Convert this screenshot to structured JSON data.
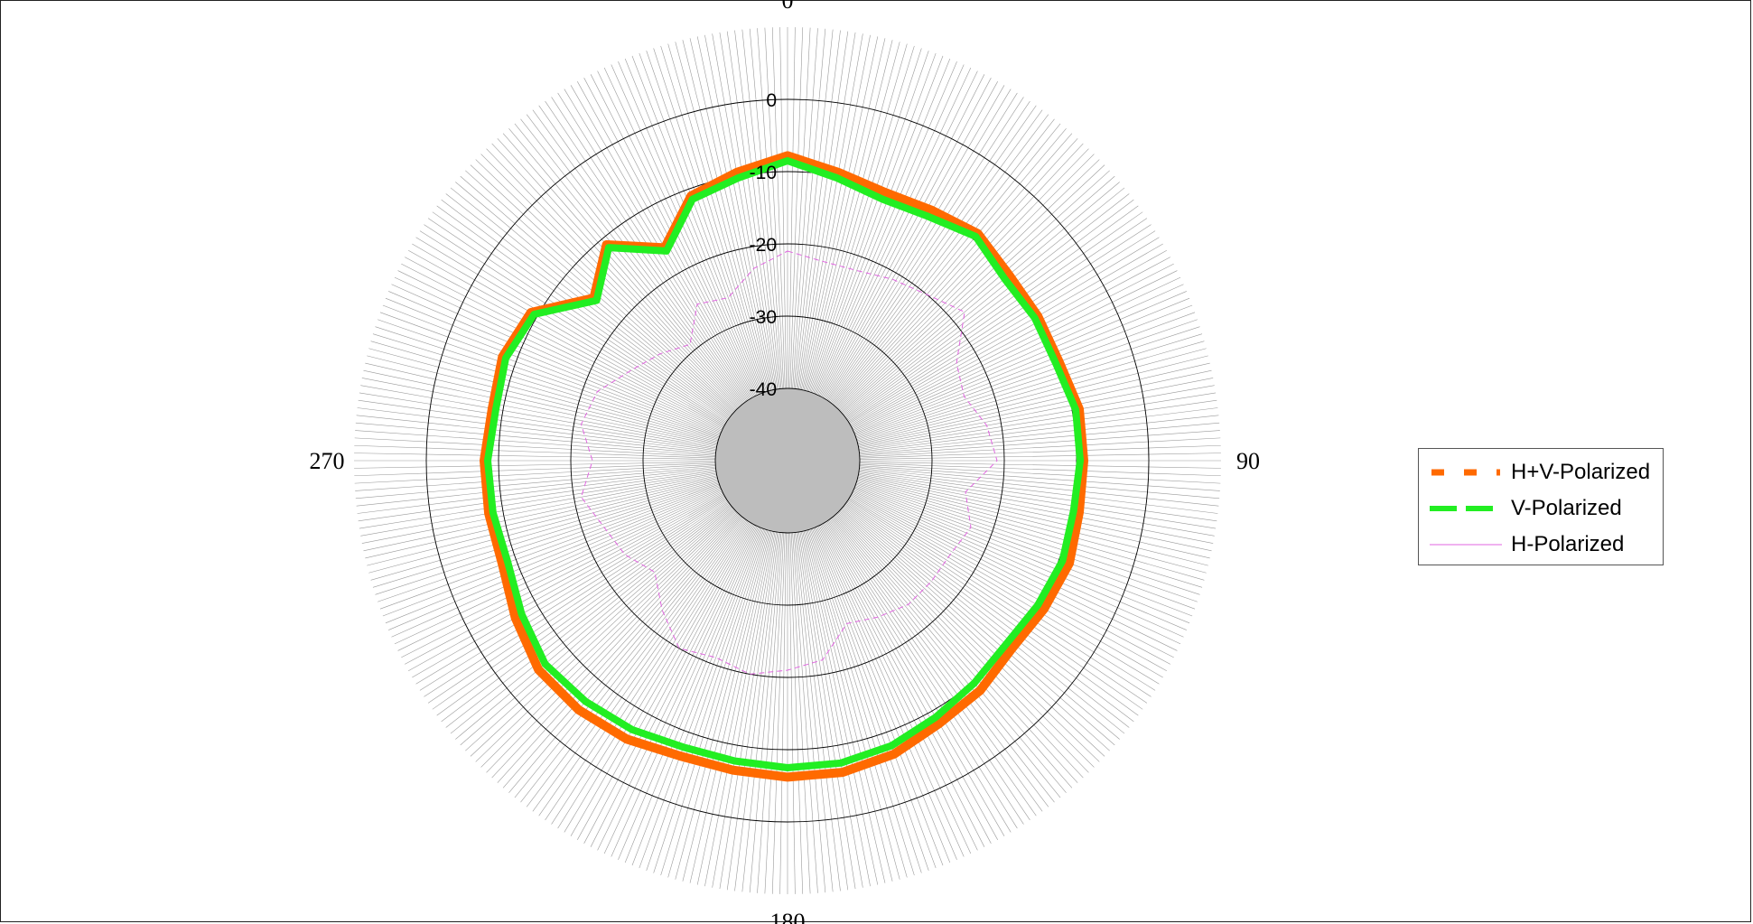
{
  "chart_data": {
    "type": "line",
    "subtype": "polar",
    "title": "",
    "angle_labels": [
      {
        "angle": 0,
        "text": "0"
      },
      {
        "angle": 90,
        "text": "90"
      },
      {
        "angle": 180,
        "text": "180"
      },
      {
        "angle": 270,
        "text": "270"
      }
    ],
    "radial_axis": {
      "min": -50,
      "max": 10,
      "rings": [
        0,
        -10,
        -20,
        -30,
        -40
      ],
      "ring_labels": [
        "0",
        "-10",
        "-20",
        "-30",
        "-40"
      ]
    },
    "angle_direction": "clockwise",
    "zero_angle": "top",
    "grid": true,
    "legend_position": "right",
    "series": [
      {
        "name": "H+V-Polarized",
        "color": "#ff6a00",
        "dash": "dashed",
        "points": [
          [
            0,
            -7.8
          ],
          [
            10,
            -9.5
          ],
          [
            20,
            -10.5
          ],
          [
            30,
            -10
          ],
          [
            40,
            -9
          ],
          [
            50,
            -10
          ],
          [
            60,
            -10
          ],
          [
            70,
            -10
          ],
          [
            80,
            -9
          ],
          [
            90,
            -9
          ],
          [
            100,
            -9
          ],
          [
            110,
            -8.5
          ],
          [
            120,
            -9
          ],
          [
            130,
            -9.5
          ],
          [
            140,
            -8.5
          ],
          [
            150,
            -8
          ],
          [
            160,
            -6.8
          ],
          [
            170,
            -6.2
          ],
          [
            180,
            -6.2
          ],
          [
            190,
            -6.5
          ],
          [
            200,
            -6.5
          ],
          [
            210,
            -5.5
          ],
          [
            220,
            -5
          ],
          [
            230,
            -5
          ],
          [
            240,
            -6.5
          ],
          [
            250,
            -8
          ],
          [
            260,
            -8
          ],
          [
            270,
            -8
          ],
          [
            280,
            -8.5
          ],
          [
            290,
            -8
          ],
          [
            300,
            -9
          ],
          [
            310,
            -15
          ],
          [
            320,
            -11
          ],
          [
            330,
            -16
          ],
          [
            340,
            -11
          ],
          [
            350,
            -9.5
          ],
          [
            360,
            -7.8
          ]
        ]
      },
      {
        "name": "V-Polarized",
        "color": "#22ee22",
        "dash": "dashed",
        "points": [
          [
            0,
            -8.5
          ],
          [
            10,
            -10.3
          ],
          [
            20,
            -11.5
          ],
          [
            30,
            -11
          ],
          [
            40,
            -9.5
          ],
          [
            50,
            -10.8
          ],
          [
            60,
            -10.5
          ],
          [
            70,
            -10.5
          ],
          [
            80,
            -9.5
          ],
          [
            90,
            -9.5
          ],
          [
            100,
            -9.8
          ],
          [
            110,
            -9.5
          ],
          [
            120,
            -10
          ],
          [
            130,
            -10.5
          ],
          [
            140,
            -9.8
          ],
          [
            150,
            -9
          ],
          [
            160,
            -8
          ],
          [
            170,
            -7.5
          ],
          [
            180,
            -7.5
          ],
          [
            190,
            -7.8
          ],
          [
            200,
            -7.8
          ],
          [
            210,
            -7
          ],
          [
            220,
            -6.5
          ],
          [
            230,
            -6.2
          ],
          [
            240,
            -7.5
          ],
          [
            250,
            -8.8
          ],
          [
            260,
            -8.6
          ],
          [
            270,
            -8.5
          ],
          [
            280,
            -9
          ],
          [
            290,
            -8.5
          ],
          [
            300,
            -9.5
          ],
          [
            310,
            -15.5
          ],
          [
            320,
            -11.5
          ],
          [
            330,
            -16.5
          ],
          [
            340,
            -11.5
          ],
          [
            350,
            -10.3
          ],
          [
            360,
            -8.5
          ]
        ]
      },
      {
        "name": "H-Polarized",
        "color": "#e066e0",
        "dash": "solid",
        "points": [
          [
            0,
            -21
          ],
          [
            10,
            -22
          ],
          [
            20,
            -22
          ],
          [
            30,
            -21
          ],
          [
            40,
            -20
          ],
          [
            50,
            -18
          ],
          [
            60,
            -23
          ],
          [
            70,
            -24
          ],
          [
            80,
            -22
          ],
          [
            90,
            -21
          ],
          [
            100,
            -25
          ],
          [
            110,
            -23
          ],
          [
            120,
            -24
          ],
          [
            130,
            -24
          ],
          [
            140,
            -24
          ],
          [
            150,
            -25
          ],
          [
            160,
            -26
          ],
          [
            170,
            -22
          ],
          [
            180,
            -21
          ],
          [
            190,
            -20
          ],
          [
            200,
            -21
          ],
          [
            210,
            -20
          ],
          [
            220,
            -23
          ],
          [
            230,
            -26
          ],
          [
            240,
            -24
          ],
          [
            250,
            -23
          ],
          [
            260,
            -21
          ],
          [
            270,
            -23
          ],
          [
            280,
            -21
          ],
          [
            290,
            -22
          ],
          [
            300,
            -25
          ],
          [
            310,
            -27
          ],
          [
            320,
            -29
          ],
          [
            330,
            -25
          ],
          [
            340,
            -26
          ],
          [
            350,
            -23
          ],
          [
            360,
            -21
          ]
        ]
      }
    ]
  }
}
